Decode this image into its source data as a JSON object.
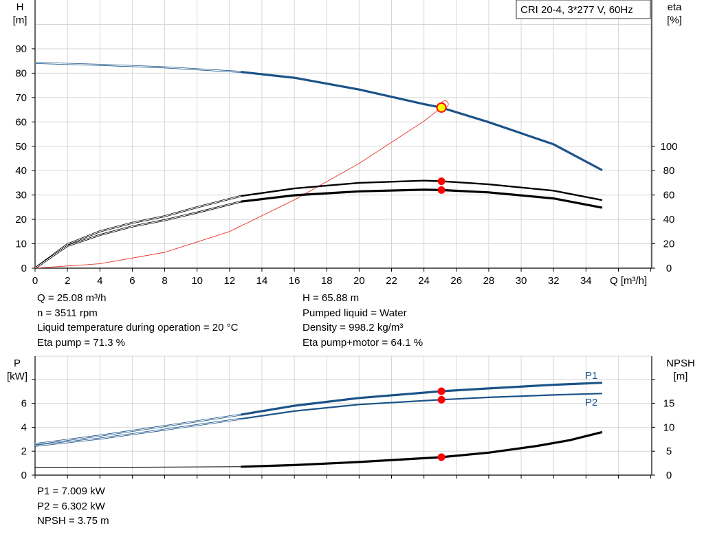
{
  "colors": {
    "blue": "#1b5389",
    "black": "#000000",
    "red_line": "#e8352a",
    "marker_red": "#ff0000",
    "marker_yellow": "#ffff00",
    "grid": "#d6d6d6"
  },
  "chart_data": [
    {
      "type": "line",
      "title": "CRI 20-4, 3*277 V, 60Hz",
      "xlabel": "Q [m³/h]",
      "ylabel_left": [
        "H",
        "[m]"
      ],
      "ylabel_right": [
        "eta",
        "[%]"
      ],
      "x_ticks": [
        "0",
        "2",
        "4",
        "6",
        "8",
        "10",
        "12",
        "14",
        "16",
        "18",
        "20",
        "22",
        "24",
        "26",
        "28",
        "30",
        "32",
        "34"
      ],
      "y_left_ticks": [
        "0",
        "10",
        "20",
        "30",
        "40",
        "50",
        "60",
        "70",
        "80",
        "90"
      ],
      "y_right_ticks": [
        "0",
        "20",
        "40",
        "60",
        "80",
        "100"
      ],
      "xlim": [
        0,
        38
      ],
      "ylim_left": [
        0,
        100
      ],
      "eta_scale": {
        "eta_0_at_H": 0,
        "eta_100_at_H": 50
      },
      "series": [
        {
          "key": "H",
          "axis": "left",
          "color": "blue",
          "x": [
            0,
            4,
            8,
            12.7,
            16,
            20,
            24,
            25.08,
            28,
            32,
            35
          ],
          "y": [
            84.2,
            83.4,
            82.4,
            80.5,
            78.1,
            73.3,
            67.3,
            65.88,
            59.9,
            50.8,
            40.2
          ]
        },
        {
          "key": "eta_pump",
          "axis": "right",
          "color": "black",
          "x": [
            0,
            2,
            4,
            6,
            8,
            10,
            12.7,
            16,
            20,
            24,
            25.08,
            28,
            32,
            35
          ],
          "y": [
            0,
            19.6,
            30.2,
            37.2,
            42.6,
            50,
            59.2,
            65.4,
            70,
            71.8,
            71.3,
            68.8,
            63.6,
            55.8
          ]
        },
        {
          "key": "eta_pump_motor",
          "axis": "right",
          "color": "black",
          "x": [
            0,
            2,
            4,
            6,
            8,
            10,
            12.7,
            16,
            20,
            24,
            25.08,
            28,
            32,
            35
          ],
          "y": [
            0,
            18.2,
            27.2,
            34.2,
            39.4,
            45.6,
            54.6,
            59.8,
            63,
            64.4,
            64.1,
            62.2,
            57.2,
            49.6
          ]
        },
        {
          "key": "system_curve",
          "axis": "left",
          "color": "red_line",
          "x": [
            0,
            4,
            8,
            12,
            16,
            20,
            24,
            25.08
          ],
          "y": [
            0,
            1.8,
            6.5,
            15,
            28,
            43,
            60.3,
            65.88
          ]
        }
      ],
      "operating_points": [
        {
          "x": 25.08,
          "y": 65.88,
          "axis": "left",
          "style": "yellow"
        },
        {
          "x": 25.08,
          "y": 71.3,
          "axis": "right",
          "style": "red"
        },
        {
          "x": 25.08,
          "y": 64.1,
          "axis": "right",
          "style": "red"
        }
      ],
      "thin_until_x": 12.7
    },
    {
      "type": "line",
      "ylabel_left": [
        "P",
        "[kW]"
      ],
      "ylabel_right": [
        "NPSH",
        "[m]"
      ],
      "x_ticks": [
        "0",
        "2",
        "4",
        "6",
        "8",
        "10",
        "12",
        "14",
        "16",
        "18",
        "20",
        "22",
        "24",
        "26",
        "28",
        "30",
        "32",
        "34"
      ],
      "y_left_ticks": [
        "0",
        "2",
        "4",
        "6"
      ],
      "y_right_ticks": [
        "0",
        "5",
        "10",
        "15"
      ],
      "xlim": [
        0,
        38
      ],
      "ylim_left": [
        0,
        8.6
      ],
      "npsh_scale": {
        "npsh_0_at_P": 0,
        "npsh_5_at_P": 2
      },
      "series": [
        {
          "key": "P1",
          "name": "P1",
          "axis": "left",
          "color": "blue",
          "x": [
            0,
            4,
            8,
            12.7,
            16,
            20,
            25.08,
            28,
            32,
            35
          ],
          "y": [
            2.6,
            3.3,
            4.1,
            5.05,
            5.8,
            6.45,
            7.009,
            7.25,
            7.55,
            7.72
          ]
        },
        {
          "key": "P2",
          "name": "P2",
          "axis": "left",
          "color": "blue",
          "x": [
            0,
            4,
            8,
            12.7,
            16,
            20,
            25.08,
            28,
            32,
            35
          ],
          "y": [
            2.45,
            3.05,
            3.8,
            4.7,
            5.35,
            5.9,
            6.302,
            6.5,
            6.7,
            6.82
          ]
        },
        {
          "key": "NPSH",
          "axis": "right",
          "color": "black",
          "x": [
            0,
            6,
            12.7,
            16,
            20,
            25.08,
            28,
            31,
            33,
            35
          ],
          "y": [
            1.65,
            1.65,
            1.75,
            2.1,
            2.75,
            3.75,
            4.7,
            6.1,
            7.3,
            9.0
          ]
        }
      ],
      "operating_points": [
        {
          "x": 25.08,
          "y": 7.009,
          "axis": "left",
          "style": "red"
        },
        {
          "x": 25.08,
          "y": 6.302,
          "axis": "left",
          "style": "red"
        },
        {
          "x": 25.08,
          "y": 3.75,
          "axis": "right",
          "style": "red"
        }
      ],
      "thin_until_x": 12.7
    }
  ],
  "info_top_left": [
    "Q = 25.08 m³/h",
    "n = 3511 rpm",
    "Liquid temperature during operation = 20 °C",
    "Eta pump = 71.3 %"
  ],
  "info_top_right": [
    "H = 65.88 m",
    "Pumped liquid = Water",
    "Density = 998.2 kg/m³",
    "Eta pump+motor = 64.1 %"
  ],
  "info_bottom": [
    "P1 = 7.009 kW",
    "P2 = 6.302 kW",
    "NPSH = 3.75 m"
  ]
}
